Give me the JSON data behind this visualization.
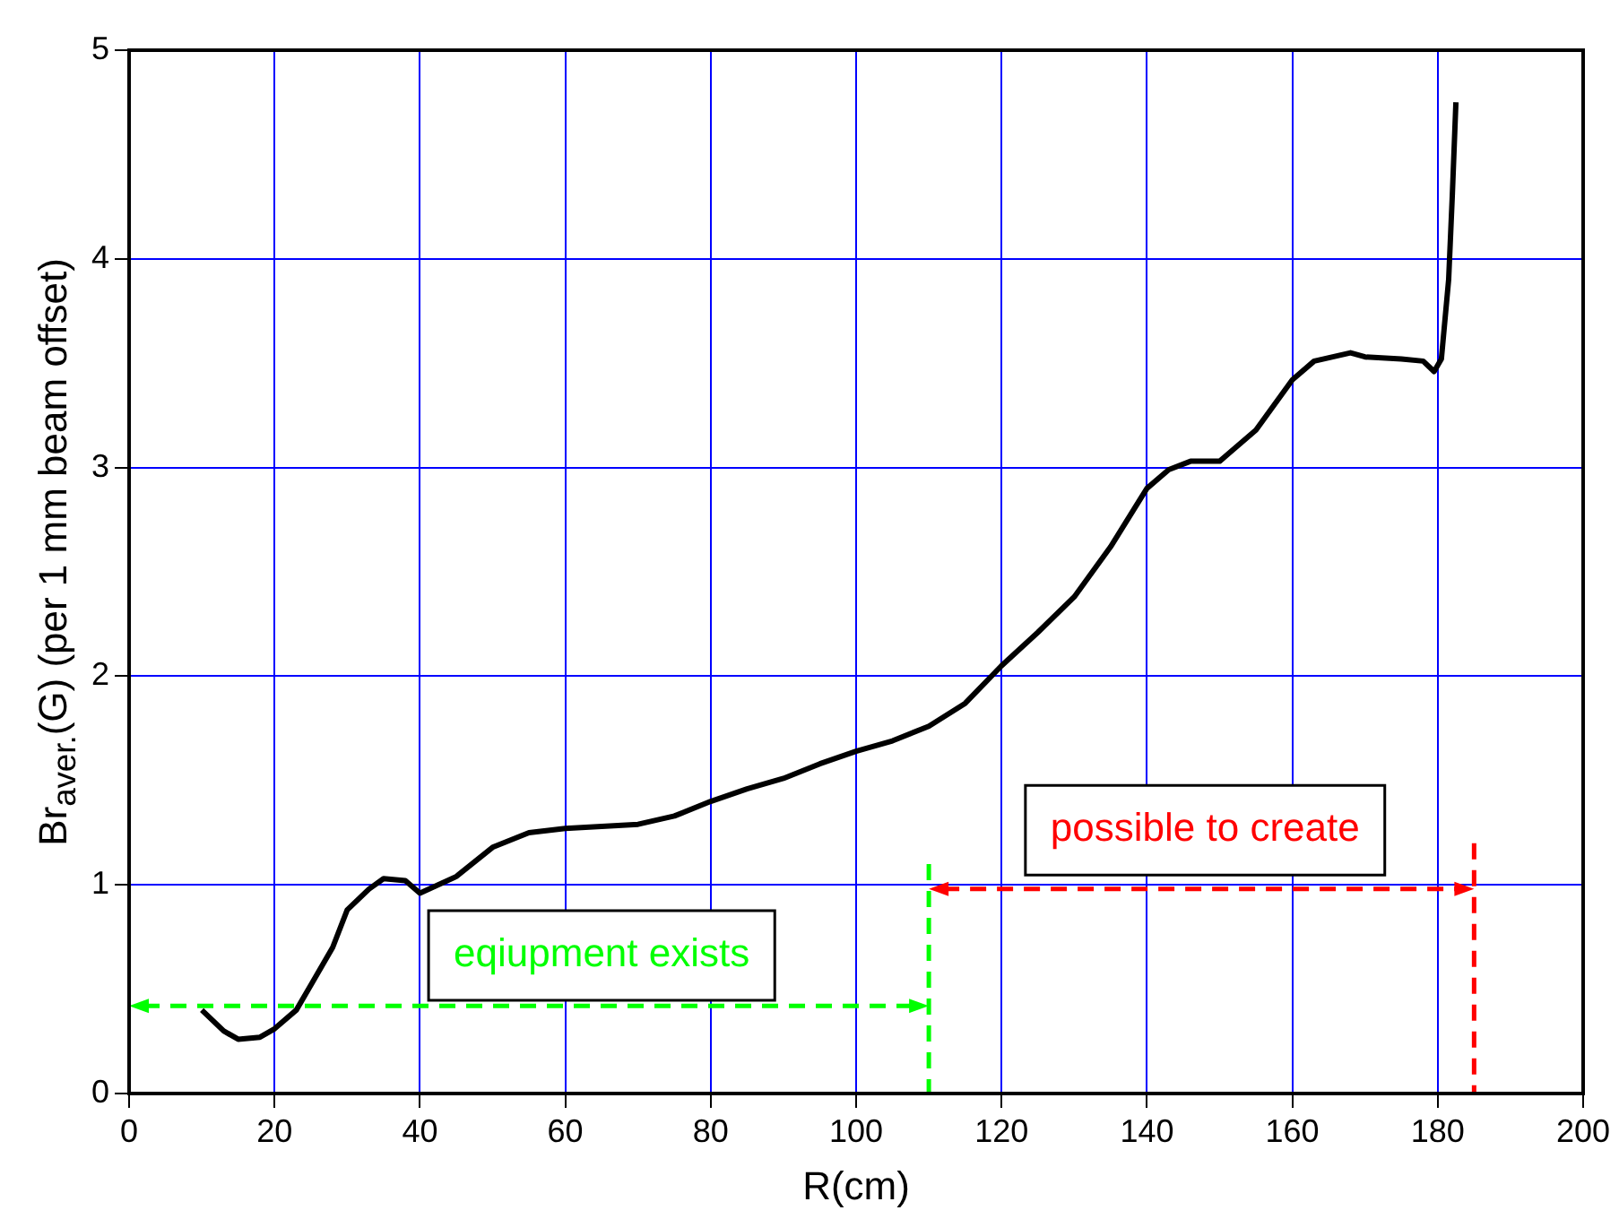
{
  "chart_data": {
    "type": "line",
    "xlabel": "R(cm)",
    "ylabel": "Br$_{aver.}$(G) (per 1 mm beam offset)",
    "series": [
      {
        "color": "#000000",
        "x": [
          10,
          13,
          15,
          18,
          20,
          23,
          25,
          28,
          30,
          33,
          35,
          38,
          40,
          45,
          50,
          55,
          60,
          65,
          70,
          75,
          80,
          85,
          90,
          95,
          100,
          105,
          110,
          115,
          120,
          125,
          130,
          135,
          140,
          143,
          146,
          150,
          155,
          160,
          163,
          168,
          170,
          175,
          178,
          179.5,
          180.5,
          181.5,
          182,
          182.5
        ],
        "values": [
          0.4,
          0.3,
          0.26,
          0.27,
          0.31,
          0.4,
          0.52,
          0.7,
          0.88,
          0.98,
          1.03,
          1.02,
          0.96,
          1.04,
          1.18,
          1.25,
          1.27,
          1.28,
          1.29,
          1.33,
          1.4,
          1.46,
          1.51,
          1.58,
          1.64,
          1.69,
          1.76,
          1.87,
          2.05,
          2.21,
          2.38,
          2.62,
          2.9,
          2.99,
          3.03,
          3.03,
          3.18,
          3.42,
          3.51,
          3.55,
          3.53,
          3.52,
          3.51,
          3.46,
          3.52,
          3.9,
          4.3,
          4.75
        ]
      }
    ],
    "xlim": [
      0,
      200
    ],
    "xticks": [
      0,
      20,
      40,
      60,
      80,
      100,
      120,
      140,
      160,
      180,
      200
    ],
    "ylim": [
      0,
      5
    ],
    "yticks": [
      0,
      1,
      2,
      3,
      4,
      5
    ],
    "grid": true,
    "legend": false,
    "marker": "none",
    "line_style": "solid",
    "ref_lines": [
      {
        "axis": "x",
        "value": 110,
        "label": "eqiupment exists",
        "color": "#00ff00",
        "line_style": "dashed"
      },
      {
        "axis": "x",
        "value": 185,
        "label": "possible to create",
        "color": "#ff0000",
        "line_style": "dashed"
      }
    ]
  }
}
